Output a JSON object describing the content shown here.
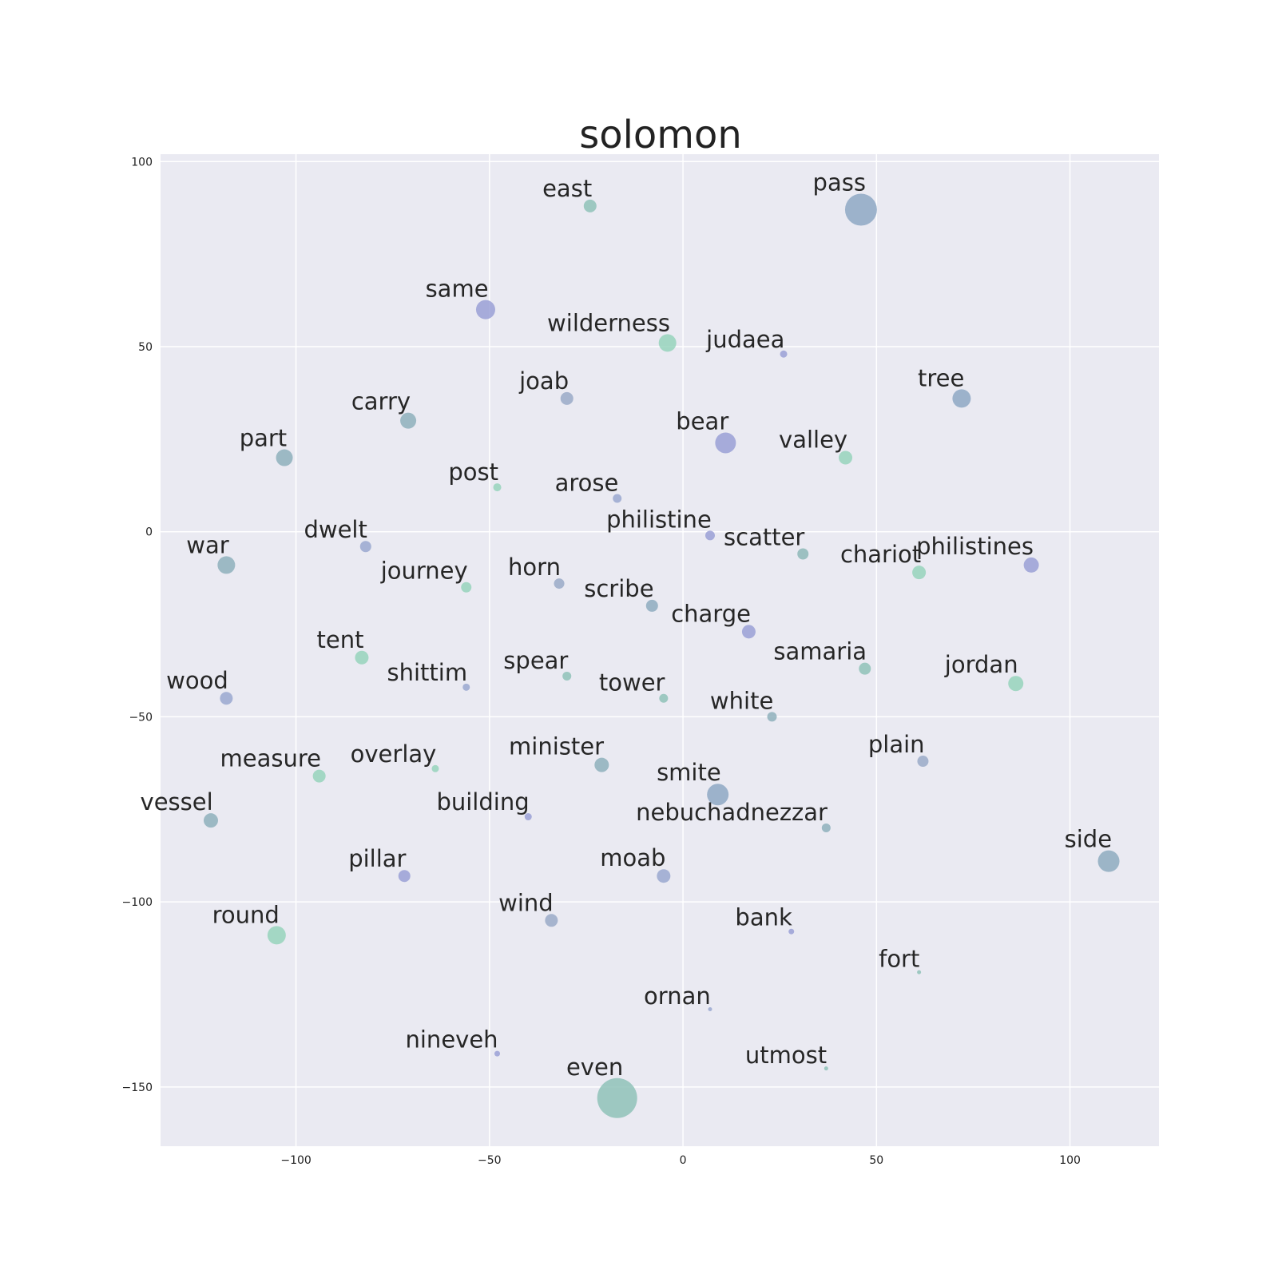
{
  "chart_data": {
    "type": "scatter",
    "title": "solomon",
    "xlabel": "",
    "ylabel": "",
    "xlim": [
      -135,
      123
    ],
    "ylim": [
      -166,
      102
    ],
    "xticks": [
      -100,
      -50,
      0,
      50,
      100
    ],
    "yticks": [
      100,
      50,
      0,
      -50,
      -100,
      -150
    ],
    "xtick_labels": [
      "−100",
      "−50",
      "0",
      "50",
      "100"
    ],
    "ytick_labels": [
      "100",
      "50",
      "0",
      "−50",
      "−100",
      "−150"
    ],
    "grid": true,
    "colors": {
      "teal": "#8fc2b8",
      "slate": "#8ea8b8",
      "blue": "#9aa8cc",
      "violet": "#9aa0d6",
      "mint": "#96d4bc"
    },
    "points": [
      {
        "label": "east",
        "x": -24,
        "y": 88,
        "size": 16,
        "color": "#8fc2b8"
      },
      {
        "label": "pass",
        "x": 46,
        "y": 87,
        "size": 40,
        "color": "#8ea8c4"
      },
      {
        "label": "same",
        "x": -51,
        "y": 60,
        "size": 24,
        "color": "#9aa0d6"
      },
      {
        "label": "wilderness",
        "x": -4,
        "y": 51,
        "size": 22,
        "color": "#96d4bc"
      },
      {
        "label": "judaea",
        "x": 26,
        "y": 48,
        "size": 9,
        "color": "#9aa0d6"
      },
      {
        "label": "joab",
        "x": -30,
        "y": 36,
        "size": 16,
        "color": "#9aaac8"
      },
      {
        "label": "tree",
        "x": 72,
        "y": 36,
        "size": 23,
        "color": "#8ea8c4"
      },
      {
        "label": "carry",
        "x": -71,
        "y": 30,
        "size": 20,
        "color": "#8eb0bc"
      },
      {
        "label": "bear",
        "x": 11,
        "y": 24,
        "size": 26,
        "color": "#9aa0d6"
      },
      {
        "label": "part",
        "x": -103,
        "y": 20,
        "size": 21,
        "color": "#8eb0bc"
      },
      {
        "label": "valley",
        "x": 42,
        "y": 20,
        "size": 17,
        "color": "#96d4bc"
      },
      {
        "label": "post",
        "x": -48,
        "y": 12,
        "size": 10,
        "color": "#96d4bc"
      },
      {
        "label": "arose",
        "x": -17,
        "y": 9,
        "size": 11,
        "color": "#9aa8d0"
      },
      {
        "label": "philistine",
        "x": 7,
        "y": -1,
        "size": 12,
        "color": "#9aa0d6"
      },
      {
        "label": "dwelt",
        "x": -82,
        "y": -4,
        "size": 14,
        "color": "#9aa8d0"
      },
      {
        "label": "scatter",
        "x": 31,
        "y": -6,
        "size": 14,
        "color": "#8eb8b8"
      },
      {
        "label": "war",
        "x": -118,
        "y": -9,
        "size": 22,
        "color": "#8eb0bc"
      },
      {
        "label": "philistines",
        "x": 90,
        "y": -9,
        "size": 19,
        "color": "#9aa0d6"
      },
      {
        "label": "chariot",
        "x": 61,
        "y": -11,
        "size": 17,
        "color": "#96d4bc"
      },
      {
        "label": "horn",
        "x": -32,
        "y": -14,
        "size": 13,
        "color": "#9aaac8"
      },
      {
        "label": "journey",
        "x": -56,
        "y": -15,
        "size": 13,
        "color": "#96d4bc"
      },
      {
        "label": "scribe",
        "x": -8,
        "y": -20,
        "size": 15,
        "color": "#8eacc0"
      },
      {
        "label": "charge",
        "x": 17,
        "y": -27,
        "size": 17,
        "color": "#9aa0d6"
      },
      {
        "label": "tent",
        "x": -83,
        "y": -34,
        "size": 17,
        "color": "#96d4bc"
      },
      {
        "label": "samaria",
        "x": 47,
        "y": -37,
        "size": 15,
        "color": "#8fc2b8"
      },
      {
        "label": "spear",
        "x": -30,
        "y": -39,
        "size": 11,
        "color": "#8fc2b8"
      },
      {
        "label": "jordan",
        "x": 86,
        "y": -41,
        "size": 19,
        "color": "#96d4bc"
      },
      {
        "label": "shittim",
        "x": -56,
        "y": -42,
        "size": 9,
        "color": "#9aa8d0"
      },
      {
        "label": "tower",
        "x": -5,
        "y": -45,
        "size": 11,
        "color": "#8fc2b8"
      },
      {
        "label": "wood",
        "x": -118,
        "y": -45,
        "size": 16,
        "color": "#9aa8d0"
      },
      {
        "label": "white",
        "x": 23,
        "y": -50,
        "size": 12,
        "color": "#8eb0bc"
      },
      {
        "label": "plain",
        "x": 62,
        "y": -62,
        "size": 14,
        "color": "#9aaac8"
      },
      {
        "label": "minister",
        "x": -21,
        "y": -63,
        "size": 18,
        "color": "#8eb0bc"
      },
      {
        "label": "overlay",
        "x": -64,
        "y": -64,
        "size": 9,
        "color": "#96d4bc"
      },
      {
        "label": "measure",
        "x": -94,
        "y": -66,
        "size": 16,
        "color": "#96d4bc"
      },
      {
        "label": "smite",
        "x": 9,
        "y": -71,
        "size": 27,
        "color": "#8ea8c4"
      },
      {
        "label": "building",
        "x": -40,
        "y": -77,
        "size": 9,
        "color": "#9aa0d6"
      },
      {
        "label": "vessel",
        "x": -122,
        "y": -78,
        "size": 18,
        "color": "#8eb0bc"
      },
      {
        "label": "nebuchadnezzar",
        "x": 37,
        "y": -80,
        "size": 11,
        "color": "#8eb0bc"
      },
      {
        "label": "side",
        "x": 110,
        "y": -89,
        "size": 27,
        "color": "#8eacc0"
      },
      {
        "label": "pillar",
        "x": -72,
        "y": -93,
        "size": 15,
        "color": "#9aa0d6"
      },
      {
        "label": "moab",
        "x": -5,
        "y": -93,
        "size": 17,
        "color": "#9aa8d0"
      },
      {
        "label": "wind",
        "x": -34,
        "y": -105,
        "size": 16,
        "color": "#9aaac8"
      },
      {
        "label": "bank",
        "x": 28,
        "y": -108,
        "size": 7,
        "color": "#9aa0d6"
      },
      {
        "label": "round",
        "x": -105,
        "y": -109,
        "size": 23,
        "color": "#96d4bc"
      },
      {
        "label": "fort",
        "x": 61,
        "y": -119,
        "size": 5,
        "color": "#8fc2b8"
      },
      {
        "label": "ornan",
        "x": 7,
        "y": -129,
        "size": 5,
        "color": "#9aa8d0"
      },
      {
        "label": "nineveh",
        "x": -48,
        "y": -141,
        "size": 7,
        "color": "#9aa0d6"
      },
      {
        "label": "utmost",
        "x": 37,
        "y": -145,
        "size": 5,
        "color": "#8fc2b8"
      },
      {
        "label": "even",
        "x": -17,
        "y": -153,
        "size": 50,
        "color": "#8fc2b8"
      }
    ]
  }
}
